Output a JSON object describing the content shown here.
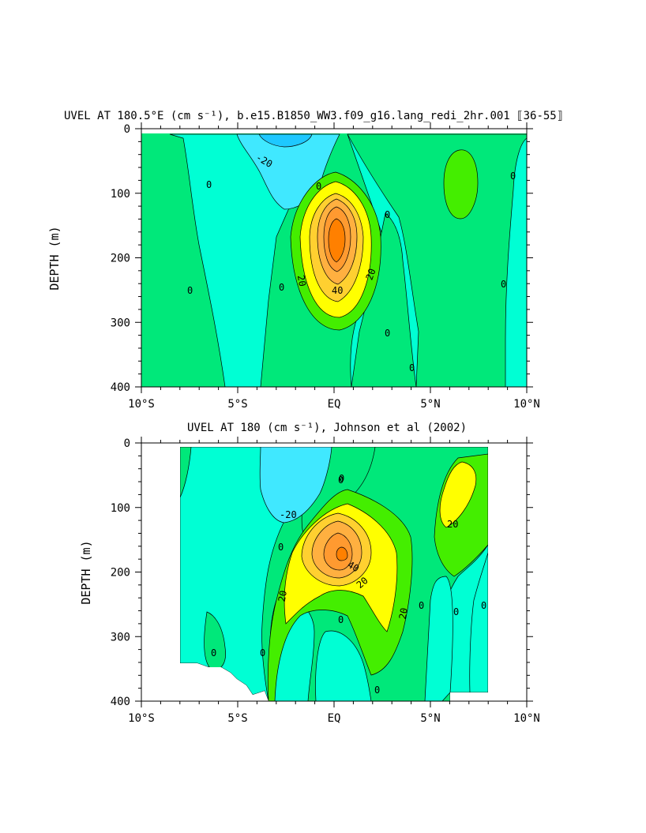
{
  "chart_data": [
    {
      "type": "contour",
      "title": "UVEL AT 180.5°E (cm s⁻¹), b.e15.B1850_WW3.f09_g16.lang_redi_2hr.001 ⟦36-55⟧",
      "ylabel": "DEPTH (m)",
      "xlabel": "",
      "x_ticks": [
        "10°S",
        "5°S",
        "EQ",
        "5°N",
        "10°N"
      ],
      "y_ticks": [
        "0",
        "100",
        "200",
        "300",
        "400"
      ],
      "xlim": [
        -10,
        10
      ],
      "ylim": [
        400,
        0
      ],
      "contour_interval": 10,
      "contour_labels": [
        "-20",
        "0",
        "0",
        "0",
        "0",
        "0",
        "0",
        "0",
        "20",
        "40",
        "20",
        "0",
        "0"
      ],
      "core": {
        "lat": 0,
        "depth": 175,
        "max_velocity_approx": 70
      },
      "colors": {
        "lt_m20": "#1ec8ff",
        "m20_m10": "#40e8ff",
        "m10_0": "#00ffd4",
        "0_10": "#00e87a",
        "10_20": "#44ee00",
        "20_30": "#ffff00",
        "30_40": "#ffd030",
        "40_50": "#ffb040",
        "50_60": "#ff9a30",
        "gt_60": "#ff8000"
      }
    },
    {
      "type": "contour",
      "title": "UVEL AT 180 (cm s⁻¹), Johnson et al (2002)",
      "ylabel": "DEPTH (m)",
      "xlabel": "",
      "x_ticks": [
        "10°S",
        "5°S",
        "EQ",
        "5°N",
        "10°N"
      ],
      "y_ticks": [
        "0",
        "100",
        "200",
        "300",
        "400"
      ],
      "xlim": [
        -10,
        10
      ],
      "ylim": [
        400,
        0
      ],
      "contour_interval": 10,
      "contour_labels": [
        "-20",
        "0",
        "0",
        "20",
        "40",
        "20",
        "0",
        "20",
        "0",
        "0",
        "0",
        "0",
        "0",
        "20",
        "0",
        "0"
      ],
      "core": {
        "lat": 0,
        "depth": 170,
        "max_velocity_approx": 60
      }
    }
  ]
}
